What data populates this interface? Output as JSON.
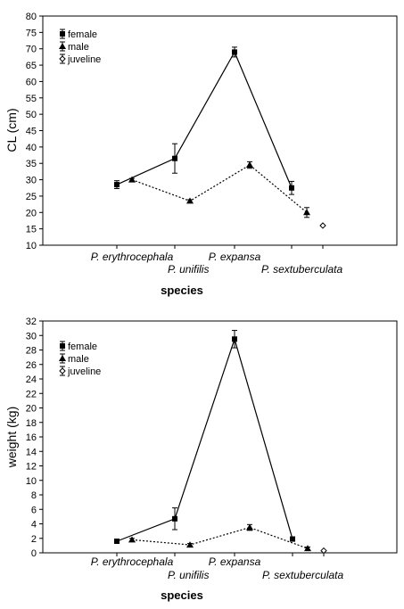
{
  "chart_data": [
    {
      "type": "line",
      "title": "",
      "xlabel": "species",
      "ylabel": "CL (cm)",
      "ylim": [
        10,
        80
      ],
      "yticks": [
        10,
        15,
        20,
        25,
        30,
        35,
        40,
        45,
        50,
        55,
        60,
        65,
        70,
        75,
        80
      ],
      "categories": [
        "P. erythrocephala",
        "P. unifilis",
        "P. expansa",
        "P. sextuberculata"
      ],
      "legend_position": "top-left",
      "series": [
        {
          "name": "female",
          "line": "solid",
          "marker": "square",
          "points": [
            {
              "x": 0,
              "y": 28.5,
              "err": 1.2
            },
            {
              "x": 1,
              "y": 36.5,
              "err": 4.5
            },
            {
              "x": 2,
              "y": 69,
              "err": 1.5
            },
            {
              "x": 3,
              "y": 27.5,
              "err": 2.0
            }
          ]
        },
        {
          "name": "male",
          "line": "dotted",
          "marker": "triangle",
          "points": [
            {
              "x": 0,
              "y": 30,
              "err": 0.4
            },
            {
              "x": 1,
              "y": 23.5,
              "err": 0.4
            },
            {
              "x": 2,
              "y": 34.5,
              "err": 1.0
            },
            {
              "x": 3,
              "y": 20,
              "err": 1.5
            }
          ]
        },
        {
          "name": "juveline",
          "line": "none",
          "marker": "diamond",
          "points": [
            {
              "x": 3,
              "y": 16,
              "err": 0
            }
          ]
        }
      ]
    },
    {
      "type": "line",
      "title": "",
      "xlabel": "species",
      "ylabel": "weight (kg)",
      "ylim": [
        0,
        32
      ],
      "yticks": [
        0,
        2,
        4,
        6,
        8,
        10,
        12,
        14,
        16,
        18,
        20,
        22,
        24,
        26,
        28,
        30,
        32
      ],
      "categories": [
        "P. erythrocephala",
        "P. unifilis",
        "P. expansa",
        "P. sextuberculata"
      ],
      "legend_position": "top-left",
      "series": [
        {
          "name": "female",
          "line": "solid",
          "marker": "square",
          "points": [
            {
              "x": 0,
              "y": 1.6,
              "err": 0.2
            },
            {
              "x": 1,
              "y": 4.7,
              "err": 1.5
            },
            {
              "x": 2,
              "y": 29.5,
              "err": 1.2
            },
            {
              "x": 3,
              "y": 1.9,
              "err": 0.3
            }
          ]
        },
        {
          "name": "male",
          "line": "dotted",
          "marker": "triangle",
          "points": [
            {
              "x": 0,
              "y": 1.8,
              "err": 0.2
            },
            {
              "x": 1,
              "y": 1.1,
              "err": 0.2
            },
            {
              "x": 2,
              "y": 3.5,
              "err": 0.4
            },
            {
              "x": 3,
              "y": 0.6,
              "err": 0.2
            }
          ]
        },
        {
          "name": "juveline",
          "line": "none",
          "marker": "diamond",
          "points": [
            {
              "x": 3,
              "y": 0.3,
              "err": 0
            }
          ]
        }
      ]
    }
  ]
}
